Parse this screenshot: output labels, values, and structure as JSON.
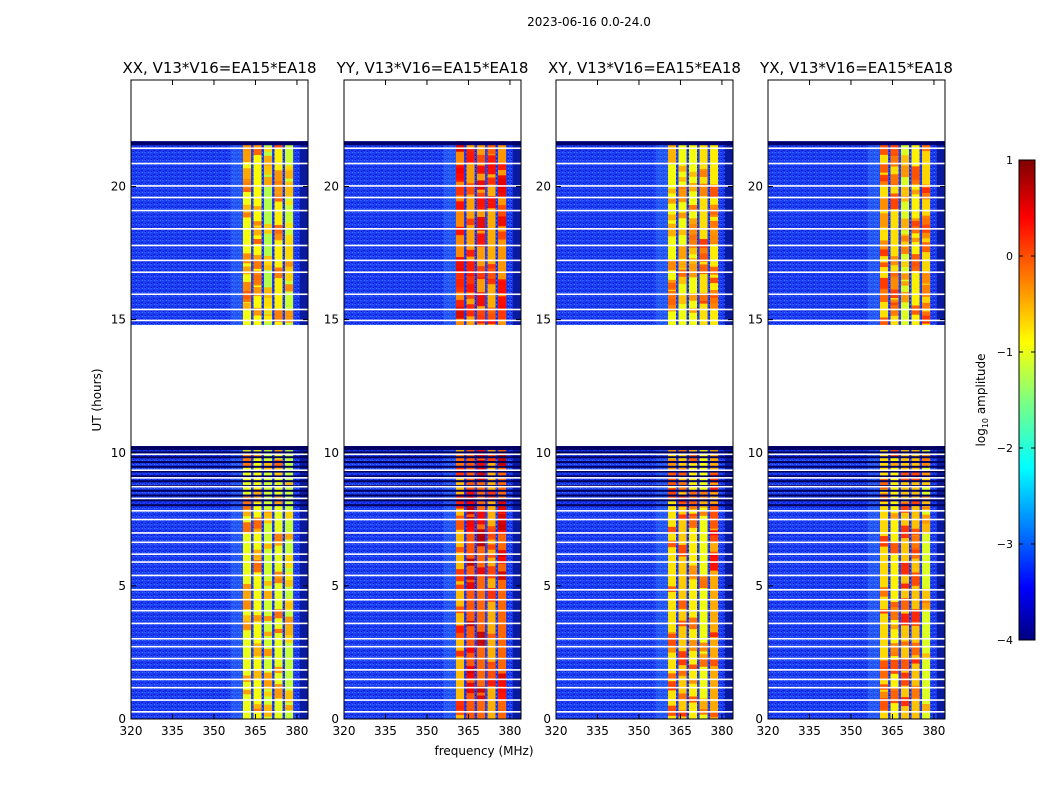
{
  "chart_data": {
    "type": "heatmap",
    "title": "2023-06-16 0.0-24.0",
    "xlabel": "frequency (MHz)",
    "ylabel": "UT (hours)",
    "xlim": [
      320,
      384
    ],
    "ylim": [
      0,
      24
    ],
    "xticks": [
      320,
      335,
      350,
      365,
      380
    ],
    "yticks": [
      0,
      5,
      10,
      15,
      20
    ],
    "panels": [
      {
        "name": "XX, V13*V16=EA15*EA18",
        "rfi_band_level": -1.0,
        "background_level": -3.0
      },
      {
        "name": "YY, V13*V16=EA15*EA18",
        "rfi_band_level": -0.3,
        "background_level": -3.0
      },
      {
        "name": "XY, V13*V16=EA15*EA18",
        "rfi_band_level": -0.7,
        "background_level": -3.0
      },
      {
        "name": "YX, V13*V16=EA15*EA18",
        "rfi_band_level": -0.8,
        "background_level": -3.0
      }
    ],
    "data_gaps_hours": [
      [
        10.25,
        14.8
      ],
      [
        21.7,
        24.0
      ]
    ],
    "rfi_band_mhz": [
      360.5,
      379.5
    ],
    "colorbar": {
      "label_prefix": "log",
      "label_sub": "10",
      "label_suffix": " amplitude",
      "range": [
        -4,
        1
      ],
      "ticks": [
        "1",
        "0",
        "−1",
        "−2",
        "−3",
        "−4"
      ],
      "colormap": "jet"
    }
  }
}
